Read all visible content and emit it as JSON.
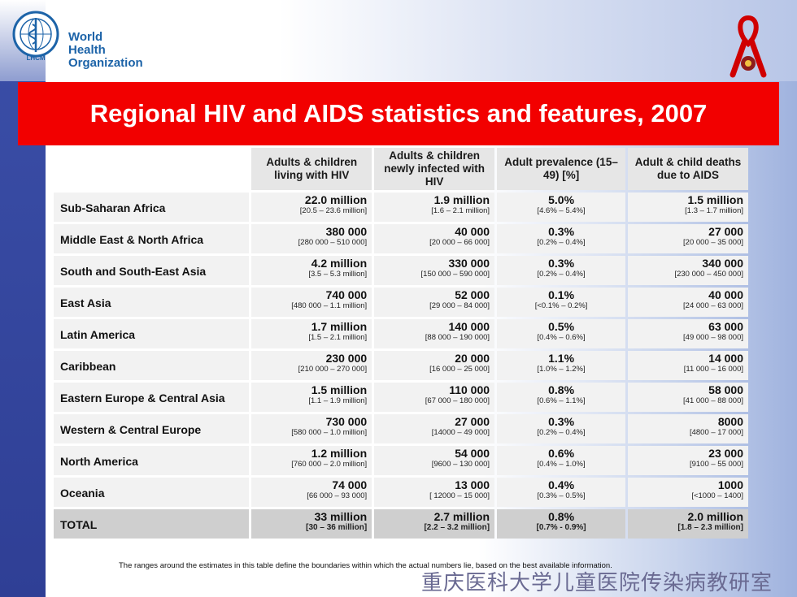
{
  "header": {
    "org_name_line1": "World Health",
    "org_name_line2": "Organization",
    "logo_ring_text": "LHCM"
  },
  "title": "Regional HIV and AIDS statistics and features, 2007",
  "table": {
    "columns": [
      "Adults & children living with HIV",
      "Adults & children newly infected with HIV",
      "Adult prevalence (15–49) [%]",
      "Adult & child deaths due to AIDS"
    ],
    "rows": [
      {
        "region": "Sub-Saharan Africa",
        "cells": [
          [
            "22.0 million",
            "[20.5 – 23.6 million]"
          ],
          [
            "1.9 million",
            "[1.6 – 2.1 million]"
          ],
          [
            "5.0%",
            "[4.6% – 5.4%]"
          ],
          [
            "1.5 million",
            "[1.3 – 1.7 million]"
          ]
        ]
      },
      {
        "region": "Middle East & North Africa",
        "cells": [
          [
            "380 000",
            "[280 000 – 510 000]"
          ],
          [
            "40 000",
            "[20 000 – 66 000]"
          ],
          [
            "0.3%",
            "[0.2% – 0.4%]"
          ],
          [
            "27 000",
            "[20 000 – 35 000]"
          ]
        ]
      },
      {
        "region": "South and South-East Asia",
        "cells": [
          [
            "4.2 million",
            "[3.5 – 5.3 million]"
          ],
          [
            "330 000",
            "[150 000 – 590 000]"
          ],
          [
            "0.3%",
            "[0.2% – 0.4%]"
          ],
          [
            "340 000",
            "[230 000 – 450 000]"
          ]
        ]
      },
      {
        "region": "East Asia",
        "cells": [
          [
            "740 000",
            "[480 000 – 1.1 million]"
          ],
          [
            "52 000",
            "[29 000 – 84 000]"
          ],
          [
            "0.1%",
            "[<0.1% – 0.2%]"
          ],
          [
            "40 000",
            "[24 000 – 63 000]"
          ]
        ]
      },
      {
        "region": "Latin America",
        "cells": [
          [
            "1.7 million",
            "[1.5 – 2.1 million]"
          ],
          [
            "140 000",
            "[88 000 – 190 000]"
          ],
          [
            "0.5%",
            "[0.4% – 0.6%]"
          ],
          [
            "63 000",
            "[49 000 – 98 000]"
          ]
        ]
      },
      {
        "region": "Caribbean",
        "cells": [
          [
            "230 000",
            "[210 000 – 270 000]"
          ],
          [
            "20 000",
            "[16 000 – 25 000]"
          ],
          [
            "1.1%",
            "[1.0% – 1.2%]"
          ],
          [
            "14 000",
            "[11 000 – 16 000]"
          ]
        ]
      },
      {
        "region": "Eastern Europe & Central Asia",
        "cells": [
          [
            "1.5 million",
            "[1.1 – 1.9 million]"
          ],
          [
            "110 000",
            "[67 000 – 180 000]"
          ],
          [
            "0.8%",
            "[0.6% – 1.1%]"
          ],
          [
            "58 000",
            "[41 000 – 88 000]"
          ]
        ]
      },
      {
        "region": "Western & Central Europe",
        "cells": [
          [
            "730 000",
            "[580 000 – 1.0 million]"
          ],
          [
            "27 000",
            "[14000 – 49 000]"
          ],
          [
            "0.3%",
            "[0.2% – 0.4%]"
          ],
          [
            "8000",
            "[4800 – 17 000]"
          ]
        ]
      },
      {
        "region": "North America",
        "cells": [
          [
            "1.2 million",
            "[760 000 – 2.0 million]"
          ],
          [
            "54 000",
            "[9600 – 130 000]"
          ],
          [
            "0.6%",
            "[0.4% – 1.0%]"
          ],
          [
            "23 000",
            "[9100 – 55 000]"
          ]
        ]
      },
      {
        "region": "Oceania",
        "cells": [
          [
            "74 000",
            "[66 000 – 93 000]"
          ],
          [
            "13 000",
            "[ 12000 – 15 000]"
          ],
          [
            "0.4%",
            "[0.3% – 0.5%]"
          ],
          [
            "1000",
            "[<1000 – 1400]"
          ]
        ]
      }
    ],
    "total": {
      "label": "TOTAL",
      "cells": [
        [
          "33 million",
          "[30 – 36 million]"
        ],
        [
          "2.7 million",
          "[2.2 – 3.2 million]"
        ],
        [
          "0.8%",
          "[0.7% - 0.9%]"
        ],
        [
          "2.0 million",
          "[1.8 – 2.3 million]"
        ]
      ]
    }
  },
  "footnote": "The ranges around the estimates in this table define the boundaries within which the actual numbers lie, based on the best available information.",
  "watermark": "重庆医科大学儿童医院传染病教研室",
  "colors": {
    "title_bg": "#f20000",
    "left_stripe": "#3b4fa8"
  }
}
